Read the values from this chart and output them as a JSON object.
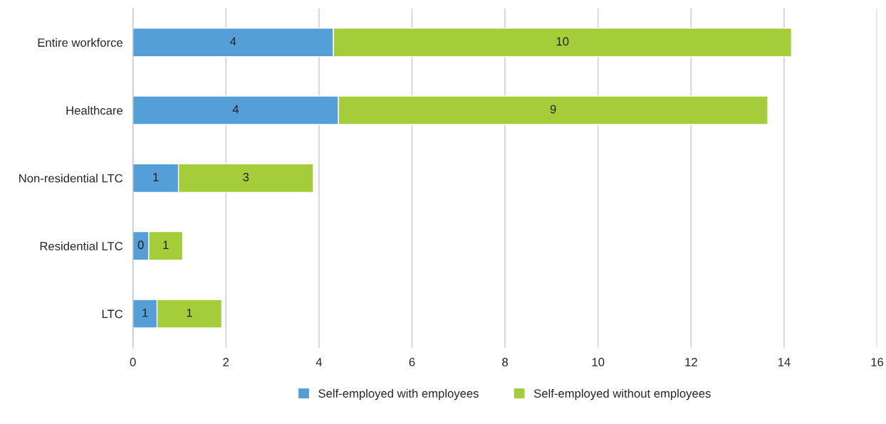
{
  "chart_data": {
    "type": "bar",
    "orientation": "horizontal",
    "stacked": true,
    "categories": [
      "Entire workforce",
      "Healthcare",
      "Non-residential LTC",
      "Residential LTC",
      "LTC"
    ],
    "series": [
      {
        "name": "Self-employed with employees",
        "color": "#559fd8",
        "values": [
          4.31,
          4.42,
          0.98,
          0.34,
          0.52
        ],
        "value_labels": [
          "4",
          "4",
          "1",
          "0",
          "1"
        ]
      },
      {
        "name": "Self-employed without employees",
        "color": "#a5cd39",
        "values": [
          9.85,
          9.23,
          2.9,
          0.73,
          1.39
        ],
        "value_labels": [
          "10",
          "9",
          "3",
          "1",
          "1"
        ]
      }
    ],
    "xlim": [
      0,
      16
    ],
    "xticks": [
      0,
      2,
      4,
      6,
      8,
      10,
      12,
      14,
      16
    ],
    "grid": "x",
    "legend": "bottom"
  }
}
